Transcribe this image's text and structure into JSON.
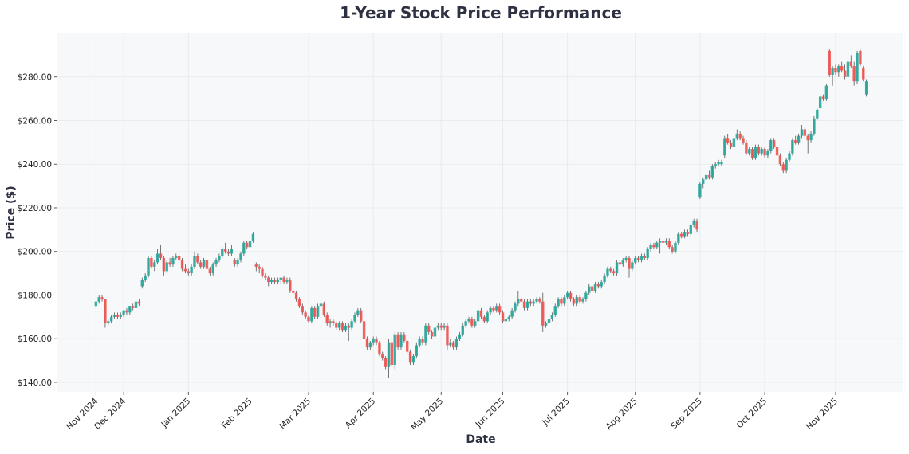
{
  "chart_data": {
    "type": "candlestick",
    "title": "1-Year Stock Price Performance",
    "xlabel": "Date",
    "ylabel": "Price ($)",
    "ylim": [
      135.6,
      300
    ],
    "xlim": [
      -12.5,
      262
    ],
    "grid": true,
    "colors": {
      "up": "#26a69a",
      "down": "#ef5350",
      "wick": "#555555",
      "plot_bg": "#f7f8fa",
      "title": "#2d3142"
    },
    "y_ticks": [
      {
        "value": 140,
        "label": "$140.00"
      },
      {
        "value": 160,
        "label": "$160.00"
      },
      {
        "value": 180,
        "label": "$180.00"
      },
      {
        "value": 200,
        "label": "$200.00"
      },
      {
        "value": 220,
        "label": "$220.00"
      },
      {
        "value": 240,
        "label": "$240.00"
      },
      {
        "value": 260,
        "label": "$260.00"
      },
      {
        "value": 280,
        "label": "$280.00"
      }
    ],
    "x_ticks": [
      {
        "index": 0,
        "label": "Nov 2024"
      },
      {
        "index": 9,
        "label": "Dec 2024"
      },
      {
        "index": 30,
        "label": "Jan 2025"
      },
      {
        "index": 50,
        "label": "Feb 2025"
      },
      {
        "index": 69,
        "label": "Mar 2025"
      },
      {
        "index": 90,
        "label": "Apr 2025"
      },
      {
        "index": 112,
        "label": "May 2025"
      },
      {
        "index": 132,
        "label": "Jun 2025"
      },
      {
        "index": 153,
        "label": "Jul 2025"
      },
      {
        "index": 175,
        "label": "Aug 2025"
      },
      {
        "index": 196,
        "label": "Sep 2025"
      },
      {
        "index": 217,
        "label": "Oct 2025"
      },
      {
        "index": 240,
        "label": "Nov 2025"
      }
    ],
    "ohlc_fields": [
      "open",
      "high",
      "low",
      "close"
    ],
    "candles": [
      [
        175,
        177,
        174,
        177
      ],
      [
        177,
        180,
        176,
        179
      ],
      [
        179,
        180,
        177,
        178
      ],
      [
        178,
        178,
        165,
        167
      ],
      [
        167,
        169,
        166,
        168
      ],
      [
        168,
        171,
        167,
        170
      ],
      [
        170,
        172,
        169,
        171
      ],
      [
        171,
        172,
        169,
        170
      ],
      [
        170,
        172,
        169,
        171
      ],
      [
        171,
        173,
        170,
        173
      ],
      [
        173,
        174,
        171,
        172
      ],
      [
        172,
        175,
        171,
        175
      ],
      [
        175,
        176,
        173,
        174
      ],
      [
        174,
        178,
        173,
        177
      ],
      [
        177,
        178,
        175,
        176
      ],
      [
        184,
        188,
        183,
        187
      ],
      [
        187,
        190,
        186,
        189
      ],
      [
        189,
        198,
        188,
        197
      ],
      [
        197,
        198,
        192,
        193
      ],
      [
        193,
        196,
        191,
        195
      ],
      [
        195,
        201,
        194,
        199
      ],
      [
        199,
        203,
        196,
        197
      ],
      [
        197,
        198,
        189,
        191
      ],
      [
        191,
        196,
        190,
        195
      ],
      [
        195,
        197,
        193,
        194
      ],
      [
        194,
        198,
        193,
        197
      ],
      [
        197,
        199,
        196,
        198
      ],
      [
        198,
        199,
        195,
        196
      ],
      [
        196,
        197,
        191,
        192
      ],
      [
        192,
        194,
        190,
        191
      ],
      [
        191,
        192,
        189,
        190
      ],
      [
        190,
        194,
        189,
        193
      ],
      [
        193,
        200,
        192,
        198
      ],
      [
        198,
        199,
        194,
        195
      ],
      [
        195,
        196,
        192,
        193
      ],
      [
        193,
        197,
        192,
        196
      ],
      [
        196,
        197,
        191,
        192
      ],
      [
        192,
        193,
        189,
        190
      ],
      [
        190,
        195,
        189,
        194
      ],
      [
        194,
        197,
        193,
        196
      ],
      [
        196,
        199,
        195,
        198
      ],
      [
        198,
        202,
        197,
        201
      ],
      [
        201,
        204,
        199,
        200
      ],
      [
        200,
        201,
        198,
        199
      ],
      [
        199,
        203,
        198,
        201
      ],
      [
        196,
        197,
        193,
        194
      ],
      [
        194,
        197,
        193,
        196
      ],
      [
        196,
        200,
        195,
        199
      ],
      [
        199,
        205,
        198,
        204
      ],
      [
        204,
        205,
        201,
        202
      ],
      [
        202,
        206,
        201,
        205
      ],
      [
        205,
        209,
        204,
        208
      ],
      [
        194,
        195,
        191,
        193
      ],
      [
        193,
        194,
        190,
        192
      ],
      [
        192,
        193,
        188,
        189
      ],
      [
        189,
        190,
        187,
        188
      ],
      [
        188,
        189,
        184,
        186
      ],
      [
        186,
        188,
        185,
        187
      ],
      [
        187,
        188,
        185,
        186
      ],
      [
        186,
        188,
        185,
        187
      ],
      [
        187,
        188,
        185,
        188
      ],
      [
        188,
        189,
        185,
        186
      ],
      [
        186,
        188,
        185,
        187
      ],
      [
        187,
        188,
        181,
        182
      ],
      [
        182,
        183,
        180,
        181
      ],
      [
        181,
        182,
        177,
        178
      ],
      [
        178,
        179,
        174,
        175
      ],
      [
        175,
        176,
        171,
        172
      ],
      [
        172,
        173,
        169,
        170
      ],
      [
        170,
        171,
        167,
        168
      ],
      [
        168,
        175,
        167,
        174
      ],
      [
        174,
        175,
        169,
        170
      ],
      [
        170,
        176,
        169,
        175
      ],
      [
        175,
        177,
        174,
        176
      ],
      [
        176,
        177,
        170,
        171
      ],
      [
        171,
        172,
        166,
        167
      ],
      [
        167,
        169,
        165,
        168
      ],
      [
        168,
        169,
        166,
        167
      ],
      [
        167,
        168,
        164,
        165
      ],
      [
        165,
        168,
        164,
        167
      ],
      [
        167,
        168,
        163,
        164
      ],
      [
        164,
        167,
        163,
        166
      ],
      [
        166,
        167,
        159,
        165
      ],
      [
        165,
        169,
        164,
        168
      ],
      [
        168,
        172,
        167,
        171
      ],
      [
        171,
        174,
        170,
        173
      ],
      [
        173,
        174,
        167,
        168
      ],
      [
        168,
        169,
        159,
        160
      ],
      [
        160,
        161,
        155,
        156
      ],
      [
        156,
        159,
        155,
        158
      ],
      [
        158,
        161,
        157,
        160
      ],
      [
        160,
        161,
        157,
        158
      ],
      [
        158,
        159,
        152,
        153
      ],
      [
        153,
        154,
        150,
        151
      ],
      [
        151,
        152,
        146,
        147
      ],
      [
        147,
        160,
        142,
        158
      ],
      [
        158,
        159,
        147,
        148
      ],
      [
        148,
        163,
        146,
        162
      ],
      [
        162,
        163,
        155,
        156
      ],
      [
        156,
        163,
        155,
        162
      ],
      [
        162,
        163,
        158,
        159
      ],
      [
        159,
        160,
        153,
        154
      ],
      [
        154,
        155,
        148,
        149
      ],
      [
        149,
        153,
        148,
        152
      ],
      [
        152,
        158,
        151,
        157
      ],
      [
        157,
        161,
        156,
        160
      ],
      [
        160,
        161,
        157,
        158
      ],
      [
        158,
        167,
        157,
        166
      ],
      [
        166,
        167,
        162,
        163
      ],
      [
        163,
        164,
        160,
        161
      ],
      [
        161,
        166,
        160,
        165
      ],
      [
        165,
        167,
        164,
        166
      ],
      [
        166,
        167,
        164,
        165
      ],
      [
        165,
        167,
        164,
        166
      ],
      [
        166,
        167,
        155,
        157
      ],
      [
        157,
        160,
        156,
        158
      ],
      [
        158,
        159,
        155,
        156
      ],
      [
        156,
        161,
        155,
        160
      ],
      [
        160,
        163,
        159,
        162
      ],
      [
        162,
        167,
        161,
        166
      ],
      [
        166,
        169,
        165,
        168
      ],
      [
        168,
        170,
        167,
        169
      ],
      [
        169,
        170,
        165,
        166
      ],
      [
        166,
        169,
        165,
        168
      ],
      [
        168,
        174,
        167,
        173
      ],
      [
        173,
        174,
        169,
        170
      ],
      [
        170,
        171,
        167,
        168
      ],
      [
        168,
        173,
        167,
        172
      ],
      [
        172,
        175,
        171,
        174
      ],
      [
        174,
        175,
        172,
        173
      ],
      [
        173,
        176,
        172,
        175
      ],
      [
        175,
        176,
        171,
        172
      ],
      [
        172,
        173,
        167,
        168
      ],
      [
        168,
        170,
        167,
        169
      ],
      [
        169,
        171,
        168,
        170
      ],
      [
        170,
        174,
        169,
        173
      ],
      [
        173,
        177,
        172,
        176
      ],
      [
        176,
        182,
        175,
        178
      ],
      [
        178,
        179,
        176,
        177
      ],
      [
        177,
        178,
        173,
        174
      ],
      [
        174,
        178,
        173,
        177
      ],
      [
        177,
        178,
        175,
        176
      ],
      [
        176,
        178,
        175,
        177
      ],
      [
        177,
        179,
        176,
        178
      ],
      [
        178,
        179,
        176,
        177
      ],
      [
        177,
        181,
        163,
        166
      ],
      [
        166,
        168,
        165,
        167
      ],
      [
        167,
        170,
        166,
        169
      ],
      [
        169,
        172,
        168,
        171
      ],
      [
        171,
        176,
        170,
        175
      ],
      [
        175,
        179,
        174,
        178
      ],
      [
        178,
        179,
        175,
        176
      ],
      [
        176,
        180,
        175,
        179
      ],
      [
        179,
        182,
        178,
        181
      ],
      [
        181,
        182,
        177,
        178
      ],
      [
        178,
        179,
        175,
        176
      ],
      [
        176,
        180,
        175,
        179
      ],
      [
        179,
        180,
        176,
        177
      ],
      [
        177,
        179,
        176,
        178
      ],
      [
        178,
        182,
        177,
        181
      ],
      [
        181,
        185,
        180,
        184
      ],
      [
        184,
        185,
        181,
        182
      ],
      [
        182,
        186,
        181,
        185
      ],
      [
        185,
        186,
        183,
        184
      ],
      [
        184,
        187,
        183,
        186
      ],
      [
        186,
        190,
        185,
        189
      ],
      [
        189,
        193,
        188,
        192
      ],
      [
        192,
        193,
        190,
        191
      ],
      [
        191,
        192,
        189,
        190
      ],
      [
        190,
        196,
        189,
        195
      ],
      [
        195,
        196,
        193,
        194
      ],
      [
        194,
        197,
        193,
        196
      ],
      [
        196,
        198,
        195,
        197
      ],
      [
        197,
        198,
        188,
        192
      ],
      [
        192,
        196,
        191,
        195
      ],
      [
        195,
        198,
        194,
        197
      ],
      [
        197,
        198,
        195,
        196
      ],
      [
        196,
        199,
        195,
        198
      ],
      [
        198,
        199,
        196,
        197
      ],
      [
        197,
        202,
        196,
        201
      ],
      [
        201,
        204,
        200,
        203
      ],
      [
        203,
        204,
        201,
        202
      ],
      [
        202,
        205,
        201,
        204
      ],
      [
        204,
        206,
        199,
        205
      ],
      [
        205,
        206,
        203,
        204
      ],
      [
        204,
        206,
        203,
        205
      ],
      [
        205,
        206,
        201,
        202
      ],
      [
        202,
        203,
        199,
        200
      ],
      [
        200,
        205,
        199,
        204
      ],
      [
        204,
        209,
        203,
        208
      ],
      [
        208,
        209,
        206,
        207
      ],
      [
        207,
        210,
        206,
        209
      ],
      [
        209,
        210,
        207,
        208
      ],
      [
        208,
        213,
        207,
        212
      ],
      [
        212,
        215,
        211,
        214
      ],
      [
        214,
        215,
        209,
        210
      ],
      [
        225,
        232,
        224,
        231
      ],
      [
        231,
        234,
        229,
        233
      ],
      [
        233,
        236,
        232,
        235
      ],
      [
        235,
        237,
        233,
        234
      ],
      [
        234,
        240,
        233,
        239
      ],
      [
        239,
        241,
        238,
        240
      ],
      [
        240,
        242,
        239,
        241
      ],
      [
        240,
        242,
        239,
        241
      ],
      [
        244,
        253,
        243,
        252
      ],
      [
        252,
        254,
        249,
        250
      ],
      [
        250,
        251,
        247,
        248
      ],
      [
        248,
        253,
        247,
        252
      ],
      [
        252,
        256,
        251,
        254
      ],
      [
        254,
        255,
        251,
        252
      ],
      [
        252,
        253,
        249,
        250
      ],
      [
        250,
        251,
        244,
        245
      ],
      [
        245,
        248,
        244,
        247
      ],
      [
        247,
        248,
        242,
        243
      ],
      [
        243,
        249,
        242,
        248
      ],
      [
        248,
        249,
        244,
        245
      ],
      [
        245,
        248,
        244,
        247
      ],
      [
        247,
        248,
        243,
        244
      ],
      [
        244,
        247,
        243,
        246
      ],
      [
        246,
        252,
        245,
        251
      ],
      [
        251,
        252,
        247,
        248
      ],
      [
        248,
        249,
        243,
        244
      ],
      [
        244,
        245,
        239,
        240
      ],
      [
        240,
        241,
        236,
        237
      ],
      [
        237,
        243,
        236,
        242
      ],
      [
        242,
        246,
        241,
        245
      ],
      [
        245,
        252,
        244,
        251
      ],
      [
        251,
        253,
        249,
        250
      ],
      [
        250,
        254,
        249,
        253
      ],
      [
        253,
        258,
        252,
        256
      ],
      [
        256,
        257,
        252,
        253
      ],
      [
        253,
        254,
        245,
        251
      ],
      [
        251,
        255,
        250,
        254
      ],
      [
        254,
        262,
        253,
        261
      ],
      [
        261,
        266,
        260,
        265
      ],
      [
        266,
        272,
        265,
        271
      ],
      [
        271,
        272,
        269,
        270
      ],
      [
        270,
        277,
        269,
        276
      ],
      [
        292,
        293,
        280,
        281
      ],
      [
        281,
        285,
        276,
        284
      ],
      [
        284,
        286,
        281,
        282
      ],
      [
        282,
        286,
        280,
        285
      ],
      [
        285,
        287,
        282,
        283
      ],
      [
        283,
        286,
        279,
        280
      ],
      [
        280,
        288,
        279,
        287
      ],
      [
        287,
        290,
        284,
        285
      ],
      [
        285,
        287,
        276,
        278
      ],
      [
        278,
        292,
        277,
        291
      ],
      [
        292,
        293,
        285,
        286
      ],
      [
        284,
        285,
        278,
        279
      ],
      [
        272,
        279,
        271,
        278
      ]
    ]
  }
}
